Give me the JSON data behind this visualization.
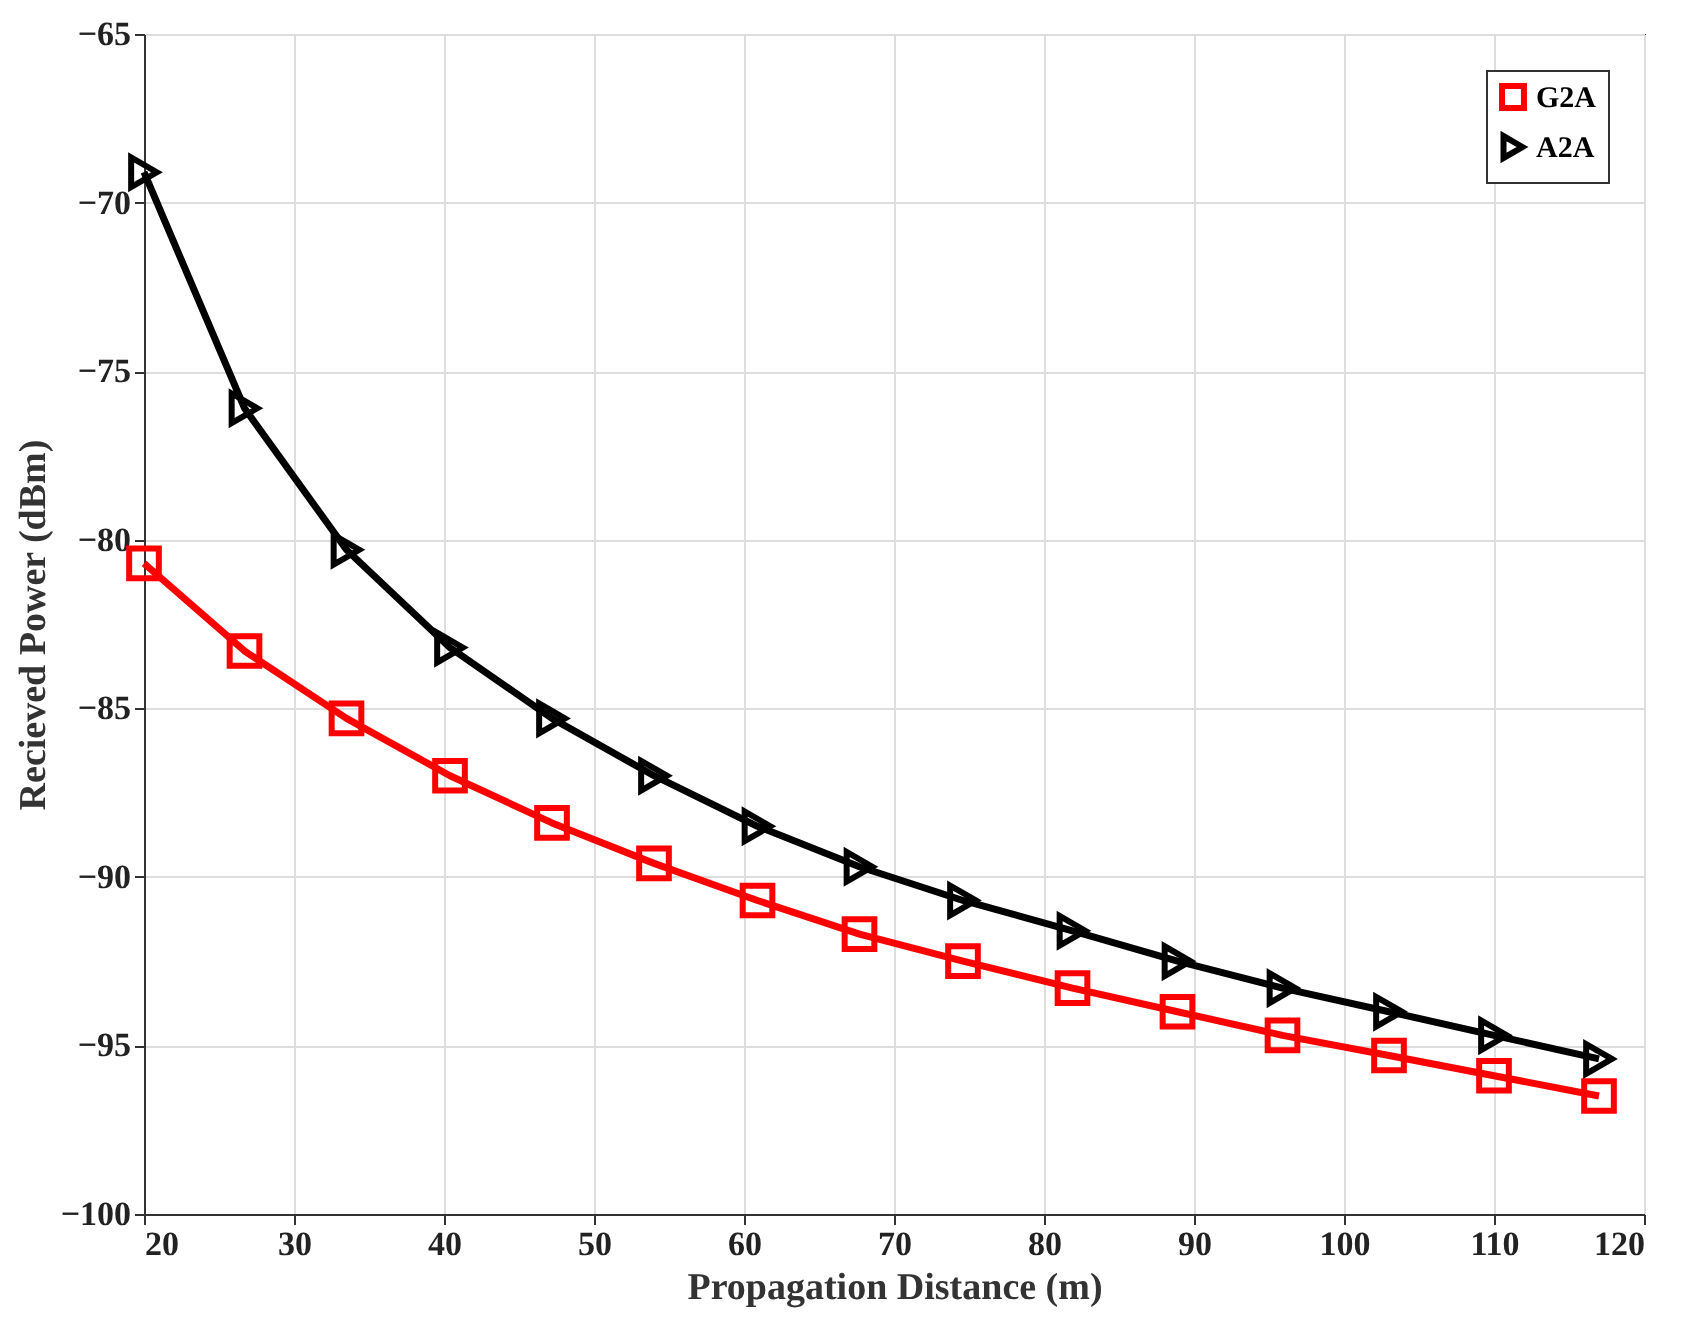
{
  "chart_data": {
    "type": "line",
    "xlabel": "Propagation Distance (m)",
    "ylabel": "Recieved Power (dBm)",
    "x": [
      20,
      26.7,
      33.5,
      40.4,
      47.2,
      54,
      60.9,
      67.7,
      74.6,
      81.9,
      88.9,
      95.9,
      103,
      110,
      117
    ],
    "series": [
      {
        "name": "G2A",
        "color": "#ff0000",
        "marker": "square",
        "values": [
          -80.7,
          -83.3,
          -85.3,
          -87.0,
          -88.4,
          -89.6,
          -90.7,
          -91.7,
          -92.5,
          -93.3,
          -94.0,
          -94.7,
          -95.3,
          -95.9,
          -96.5
        ]
      },
      {
        "name": "A2A",
        "color": "#000000",
        "marker": "triangle",
        "values": [
          -69.1,
          -76.1,
          -80.3,
          -83.2,
          -85.3,
          -87.0,
          -88.5,
          -89.7,
          -90.7,
          -91.6,
          -92.5,
          -93.3,
          -94.0,
          -94.7,
          -95.4
        ]
      }
    ],
    "xlim": [
      20,
      120
    ],
    "xticks": [
      20,
      30,
      40,
      50,
      60,
      70,
      80,
      90,
      100,
      110,
      120
    ],
    "ylim": [
      -100,
      -65
    ],
    "yticks": [
      -100,
      -95,
      -90,
      -85,
      -80,
      -75,
      -70,
      -65
    ],
    "grid": true,
    "legend": "top right",
    "line_style": "solid"
  }
}
